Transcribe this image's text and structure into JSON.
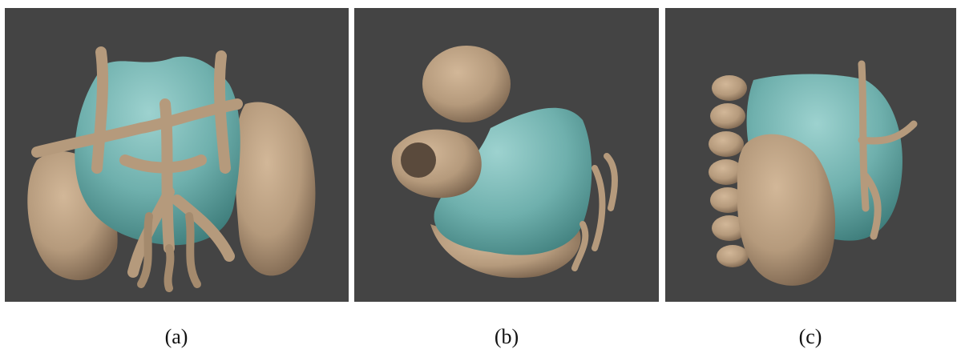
{
  "colors": {
    "background": "#444444",
    "tissue_tan": "#b59a7c",
    "tumor_cyan": "#6fb0ad"
  },
  "panels": [
    {
      "caption": "(a)"
    },
    {
      "caption": "(b)"
    },
    {
      "caption": "(c)"
    }
  ]
}
